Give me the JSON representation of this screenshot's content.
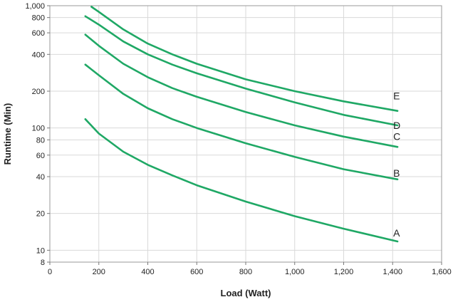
{
  "chart_data": {
    "type": "line",
    "title": "",
    "xlabel": "Load (Watt)",
    "ylabel": "Runtime (Min)",
    "xlim": [
      0,
      1600
    ],
    "ylim": [
      8,
      1000
    ],
    "yscale": "log",
    "grid": true,
    "x_ticks": [
      0,
      200,
      400,
      600,
      800,
      1000,
      1200,
      1400,
      1600
    ],
    "x_tick_labels": [
      "0",
      "200",
      "400",
      "600",
      "800",
      "1,000",
      "1,200",
      "1,400",
      "1,600"
    ],
    "y_ticks": [
      8,
      10,
      20,
      40,
      60,
      80,
      100,
      200,
      400,
      600,
      800,
      1000
    ],
    "y_tick_labels": [
      "8",
      "10",
      "20",
      "40",
      "60",
      "80",
      "100",
      "200",
      "400",
      "600",
      "800",
      "1,000"
    ],
    "line_color": "#1fa865",
    "series": [
      {
        "name": "A",
        "x": [
          145,
          200,
          300,
          400,
          500,
          600,
          800,
          1000,
          1200,
          1420
        ],
        "y": [
          118,
          90,
          64,
          50,
          41,
          34,
          25,
          19,
          15,
          11.8
        ]
      },
      {
        "name": "B",
        "x": [
          145,
          200,
          300,
          400,
          500,
          600,
          800,
          1000,
          1200,
          1420
        ],
        "y": [
          330,
          270,
          190,
          145,
          118,
          100,
          75,
          58,
          46,
          38
        ]
      },
      {
        "name": "C",
        "x": [
          145,
          200,
          300,
          400,
          500,
          600,
          800,
          1000,
          1200,
          1420
        ],
        "y": [
          580,
          470,
          335,
          260,
          212,
          180,
          135,
          105,
          85,
          70
        ]
      },
      {
        "name": "D",
        "x": [
          145,
          200,
          300,
          400,
          500,
          600,
          800,
          1000,
          1200,
          1420
        ],
        "y": [
          820,
          700,
          510,
          400,
          330,
          280,
          210,
          162,
          128,
          105
        ]
      },
      {
        "name": "E",
        "x": [
          170,
          200,
          300,
          400,
          500,
          600,
          800,
          1000,
          1200,
          1420
        ],
        "y": [
          980,
          890,
          640,
          490,
          400,
          335,
          250,
          200,
          165,
          138
        ]
      }
    ]
  }
}
